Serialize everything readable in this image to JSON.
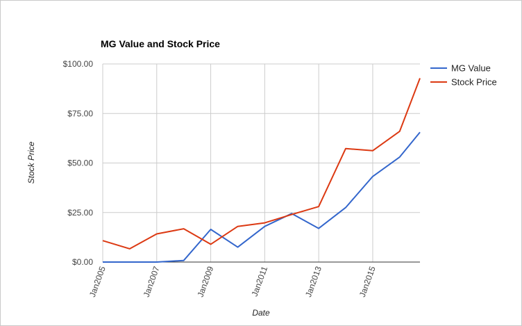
{
  "chart_data": {
    "type": "line",
    "title": "MG Value and Stock Price",
    "xlabel": "Date",
    "ylabel": "Stock Price",
    "ylim": [
      0,
      100
    ],
    "xlim": [
      "2005-01-01",
      "2016-10-01"
    ],
    "y_ticks": [
      "$0.00",
      "$25.00",
      "$50.00",
      "$75.00",
      "$100.00"
    ],
    "y_tick_values": [
      0,
      25,
      50,
      75,
      100
    ],
    "x_ticks": [
      "Jan2005",
      "Jan2007",
      "Jan2009",
      "Jan2011",
      "Jan2013",
      "Jan2015"
    ],
    "x_tick_values": [
      "2005-01-01",
      "2007-01-01",
      "2009-01-01",
      "2011-01-01",
      "2013-01-01",
      "2015-01-01"
    ],
    "grid": true,
    "legend_position": "right",
    "series": [
      {
        "name": "MG Value",
        "color": "#3366cc",
        "points": [
          [
            "2005-01-01",
            0
          ],
          [
            "2006-01-01",
            0
          ],
          [
            "2007-01-01",
            0
          ],
          [
            "2008-01-01",
            0.8
          ],
          [
            "2009-01-01",
            16.5
          ],
          [
            "2010-01-01",
            7.5
          ],
          [
            "2011-01-01",
            18
          ],
          [
            "2012-01-01",
            24.5
          ],
          [
            "2013-01-01",
            17
          ],
          [
            "2014-01-01",
            27.5
          ],
          [
            "2015-01-01",
            43.2
          ],
          [
            "2016-01-01",
            53
          ],
          [
            "2016-10-01",
            65.5
          ]
        ]
      },
      {
        "name": "Stock Price",
        "color": "#dc3912",
        "points": [
          [
            "2005-01-01",
            10.8
          ],
          [
            "2006-01-01",
            6.7
          ],
          [
            "2007-01-01",
            14.2
          ],
          [
            "2008-01-01",
            16.8
          ],
          [
            "2009-01-01",
            9
          ],
          [
            "2010-01-01",
            18
          ],
          [
            "2011-01-01",
            19.8
          ],
          [
            "2012-01-01",
            24
          ],
          [
            "2013-01-01",
            28
          ],
          [
            "2014-01-01",
            57.3
          ],
          [
            "2015-01-01",
            56.2
          ],
          [
            "2016-01-01",
            66
          ],
          [
            "2016-10-01",
            92.8
          ]
        ]
      }
    ]
  }
}
